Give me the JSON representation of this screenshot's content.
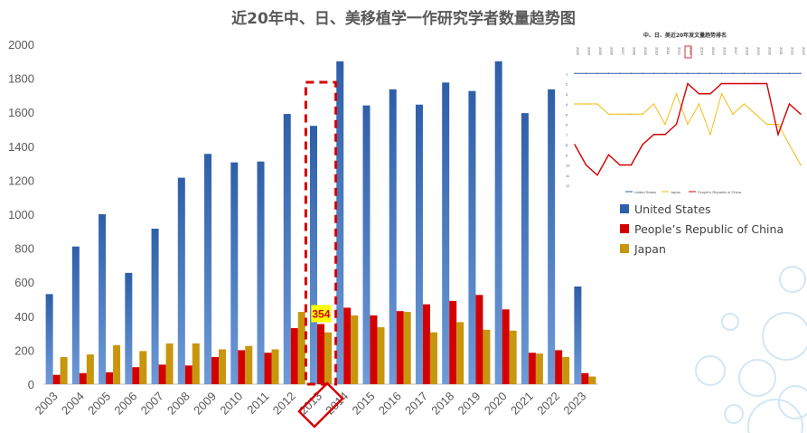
{
  "title": "近20年中、日、美移植学一作研究学者数量趋势图",
  "colors": {
    "us": "#2e5fa8",
    "us_light": "#6e9ad8",
    "china": "#d40000",
    "japan": "#c8960c",
    "highlight": "#d40000",
    "callout_bg": "#ffff00",
    "grid": "#d9d9d9",
    "text": "#595959"
  },
  "legend": [
    {
      "name": "United States",
      "color": "#2e5fa8"
    },
    {
      "name": "People’s Republic of China",
      "color": "#d40000"
    },
    {
      "name": "Japan",
      "color": "#c8960c"
    }
  ],
  "chart_data": [
    {
      "type": "bar",
      "title": "近20年中、日、美移植学一作研究学者数量趋势图",
      "categories": [
        "2003",
        "2004",
        "2005",
        "2006",
        "2007",
        "2008",
        "2009",
        "2010",
        "2011",
        "2012",
        "2013",
        "2014",
        "2015",
        "2016",
        "2017",
        "2018",
        "2019",
        "2020",
        "2021",
        "2022",
        "2023"
      ],
      "series": [
        {
          "name": "United States",
          "values": [
            530,
            810,
            1000,
            655,
            915,
            1215,
            1355,
            1305,
            1310,
            1590,
            1520,
            1900,
            1640,
            1735,
            1645,
            1775,
            1725,
            1900,
            1595,
            1735,
            575
          ]
        },
        {
          "name": "People’s Republic of China",
          "values": [
            55,
            65,
            70,
            100,
            115,
            110,
            160,
            200,
            185,
            330,
            354,
            450,
            405,
            430,
            470,
            490,
            525,
            440,
            185,
            200,
            65
          ]
        },
        {
          "name": "Japan",
          "values": [
            160,
            175,
            230,
            195,
            240,
            240,
            205,
            225,
            205,
            425,
            305,
            405,
            335,
            425,
            305,
            365,
            320,
            315,
            180,
            160,
            45
          ]
        }
      ],
      "ylim": [
        0,
        2000
      ],
      "yticks": [
        0,
        200,
        400,
        600,
        800,
        1000,
        1200,
        1400,
        1600,
        1800,
        2000
      ],
      "grid": false,
      "legend_position": "right",
      "highlight": {
        "category": "2013",
        "label": "354"
      }
    },
    {
      "type": "line",
      "title": "中、日、美近20年发文量趋势排名",
      "categories": [
        "2003",
        "2004",
        "2005",
        "2006",
        "2007",
        "2008",
        "2009",
        "2010",
        "2011",
        "2012",
        "2013",
        "2014",
        "2015",
        "2016",
        "2017",
        "2018",
        "2019",
        "2020",
        "2021",
        "2022",
        "2023"
      ],
      "series": [
        {
          "name": "United States",
          "values": [
            1,
            1,
            1,
            1,
            1,
            1,
            1,
            1,
            1,
            1,
            1,
            1,
            1,
            1,
            1,
            1,
            1,
            1,
            1,
            1,
            1
          ]
        },
        {
          "name": "Japan",
          "values": [
            4,
            4,
            4,
            5,
            5,
            5,
            5,
            4,
            6,
            3,
            6,
            4,
            7,
            3,
            5,
            4,
            5,
            6,
            6,
            8,
            10
          ]
        },
        {
          "name": "People’s Republic of China",
          "values": [
            8,
            10,
            11,
            9,
            10,
            10,
            8,
            7,
            7,
            6,
            2,
            3,
            3,
            2,
            2,
            2,
            2,
            2,
            7,
            4,
            5
          ]
        }
      ],
      "ylim": [
        12,
        0
      ],
      "legend_position": "bottom",
      "highlight": {
        "category": "2013"
      }
    }
  ]
}
